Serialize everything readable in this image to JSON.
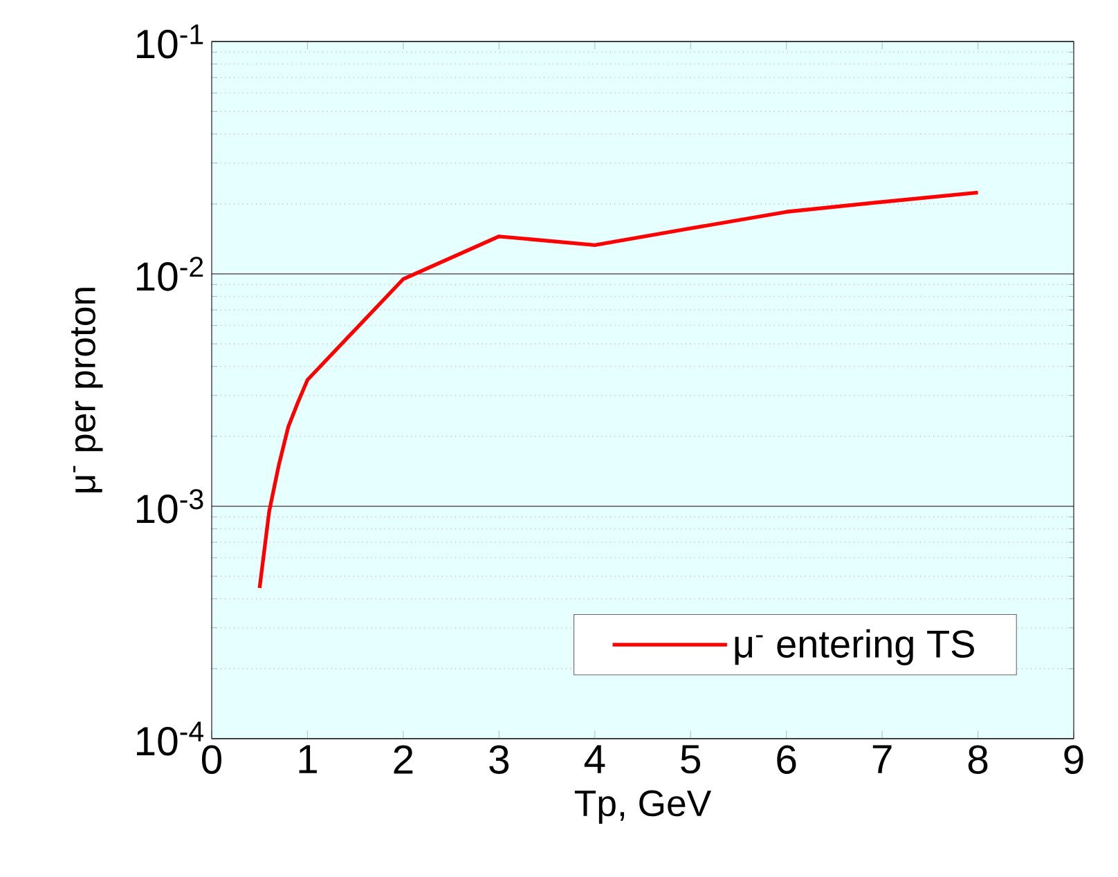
{
  "chart_data": {
    "type": "line",
    "xlabel": "Tp, GeV",
    "ylabel": "μ$^{-}$ per proton",
    "x": [
      0.5,
      0.6,
      0.7,
      0.8,
      0.9,
      1,
      2,
      3,
      4,
      5,
      6,
      7,
      8
    ],
    "series": [
      {
        "name": "μ$^{-}$ entering TS",
        "color": "#ff0000",
        "values": [
          0.000445,
          0.00095,
          0.0015,
          0.0022,
          0.0028,
          0.0035,
          0.0095,
          0.0145,
          0.0133,
          0.0157,
          0.0185,
          0.0204,
          0.0224
        ]
      }
    ],
    "log": "y",
    "xlim": [
      0,
      9
    ],
    "ylim": [
      0.0001,
      0.1
    ],
    "xticks": [
      0,
      1,
      2,
      3,
      4,
      5,
      6,
      7,
      8,
      9
    ],
    "yticks": [
      {
        "value": 0.0001,
        "label": "10$^{-4}$"
      },
      {
        "value": 0.001,
        "label": "10$^{-3}$"
      },
      {
        "value": 0.01,
        "label": "10$^{-2}$"
      },
      {
        "value": 0.1,
        "label": "10$^{-1}$"
      }
    ],
    "grid": "y",
    "legend": "bottom right",
    "marker": "none",
    "line_style": "solid"
  }
}
